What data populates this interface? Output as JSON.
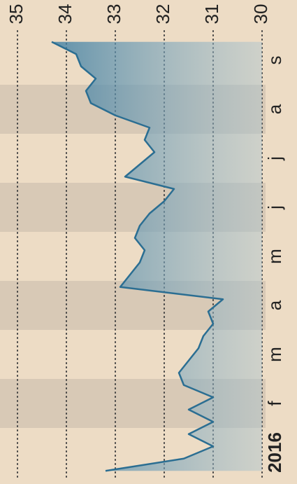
{
  "chart_data": {
    "type": "line",
    "categories": [
      "2016",
      null,
      null,
      null,
      "f",
      null,
      null,
      null,
      "m",
      null,
      null,
      null,
      "a",
      null,
      null,
      null,
      "m",
      null,
      null,
      null,
      "j",
      null,
      null,
      null,
      "j",
      null,
      null,
      null,
      "a",
      null,
      null,
      null,
      "s",
      null,
      null,
      null
    ],
    "series": [
      {
        "color": "#2b6e92",
        "values": [
          33.2,
          31.6,
          31.0,
          31.5,
          31.0,
          31.5,
          31.0,
          31.6,
          31.7,
          31.5,
          31.3,
          31.2,
          31.0,
          31.1,
          30.8,
          32.9,
          32.7,
          32.5,
          32.4,
          32.6,
          32.5,
          32.3,
          32.0,
          31.8,
          32.8,
          32.5,
          32.2,
          32.4,
          32.3,
          33.0,
          33.5,
          33.6,
          33.4,
          33.7,
          33.8,
          34.3
        ]
      }
    ],
    "ylim": [
      30,
      35
    ],
    "yticks": [
      30,
      31,
      32,
      33,
      34,
      35
    ],
    "grid": true
  }
}
